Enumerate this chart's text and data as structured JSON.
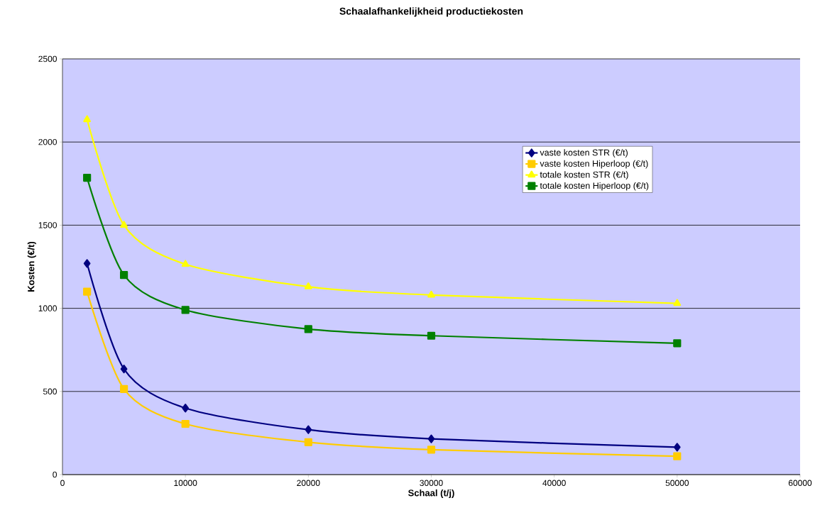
{
  "chart_data": {
    "type": "line",
    "title": "Schaalafhankelijkheid productiekosten",
    "xlabel": "Schaal (t/j)",
    "ylabel": "Kosten (€/t)",
    "x": [
      2000,
      5000,
      10000,
      20000,
      30000,
      50000
    ],
    "series": [
      {
        "name": "vaste kosten STR (€/t)",
        "color": "#000080",
        "marker": "diamond",
        "values": [
          1270,
          635,
          400,
          270,
          215,
          165
        ]
      },
      {
        "name": "vaste kosten Hiperloop (€/t)",
        "color": "#ffcc00",
        "marker": "square",
        "values": [
          1100,
          515,
          305,
          195,
          150,
          110
        ]
      },
      {
        "name": "totale kosten STR (€/t)",
        "color": "#ffff00",
        "marker": "triangle",
        "values": [
          2135,
          1500,
          1265,
          1130,
          1080,
          1030
        ]
      },
      {
        "name": "totale kosten Hiperloop (€/t)",
        "color": "#008000",
        "marker": "square",
        "values": [
          1785,
          1200,
          990,
          875,
          835,
          790
        ]
      }
    ],
    "xlim": [
      0,
      60000
    ],
    "ylim": [
      0,
      2500
    ],
    "xticks": [
      0,
      10000,
      20000,
      30000,
      40000,
      50000,
      60000
    ],
    "yticks": [
      0,
      500,
      1000,
      1500,
      2000,
      2500
    ],
    "grid": "y",
    "legend": "top right",
    "line_style": "solid"
  }
}
